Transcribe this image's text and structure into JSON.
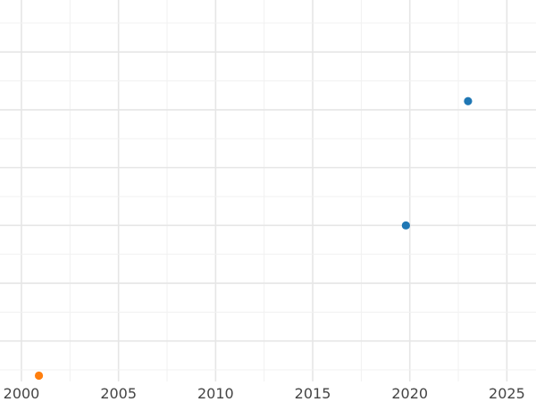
{
  "chart_data": {
    "type": "scatter",
    "title": "",
    "xlabel": "",
    "ylabel": "",
    "xlim": [
      2000,
      2026.5
    ],
    "ylim": [
      -1.7,
      4.9
    ],
    "x_ticks": [
      2000,
      2005,
      2010,
      2015,
      2020,
      2025
    ],
    "x_tick_labels": [
      "2000",
      "2005",
      "2010",
      "2015",
      "2020",
      "2025"
    ],
    "grid": true,
    "legend": "none",
    "series": [
      {
        "color": "#1f77b4",
        "points": [
          {
            "x": 2019.8,
            "y": 1.0
          },
          {
            "x": 2023.0,
            "y": 3.15
          }
        ]
      },
      {
        "color": "#ff7f0e",
        "points": [
          {
            "x": 2000.9,
            "y": -1.6
          }
        ]
      }
    ]
  }
}
